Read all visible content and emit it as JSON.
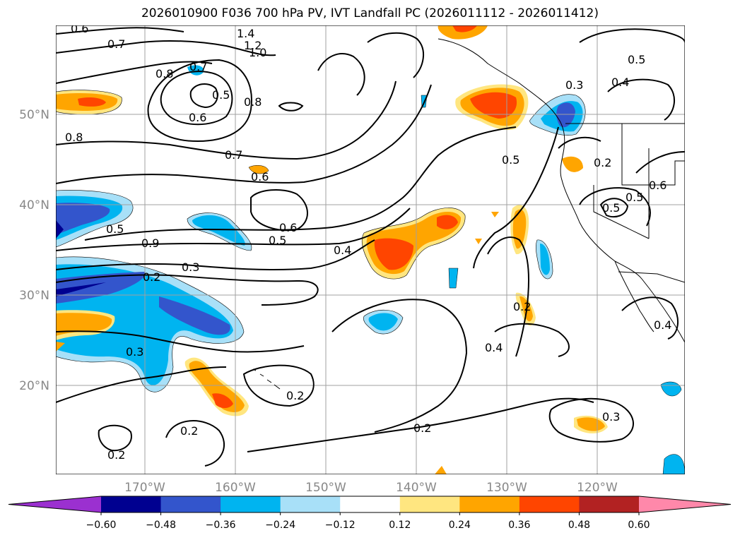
{
  "title": "2026010900 F036 700 hPa PV, IVT Landfall PC (2026011112 - 2026011412)",
  "lat_labels": [
    "50°N",
    "40°N",
    "30°N",
    "20°N"
  ],
  "lon_labels": [
    "170°W",
    "160°W",
    "150°W",
    "140°W",
    "130°W",
    "120°W"
  ],
  "contour_labels": [
    "0.6",
    "0.7",
    "1.4",
    "1.2",
    "1.0",
    "0.7",
    "0.8",
    "0.5",
    "0.6",
    "0.8",
    "0.8",
    "0.7",
    "0.6",
    "0.5",
    "0.6",
    "0.5",
    "0.4",
    "0.3",
    "0.2",
    "0.3",
    "0.2",
    "0.2",
    "0.2",
    "0.5",
    "0.4",
    "0.3",
    "0.5",
    "0.2",
    "0.5",
    "0.5",
    "0.6",
    "0.2",
    "0.4",
    "0.4",
    "0.3",
    "0.2",
    "0.9"
  ],
  "colorbar": {
    "ticks": [
      "−0.60",
      "−0.48",
      "−0.36",
      "−0.24",
      "−0.12",
      "0.12",
      "0.24",
      "0.36",
      "0.48",
      "0.60"
    ],
    "colors": [
      "#9b30d0",
      "#000090",
      "#3355cc",
      "#00b4f0",
      "#a8e0f8",
      "#ffffff",
      "#ffe680",
      "#ffa500",
      "#ff4500",
      "#b22222",
      "#ff88aa"
    ]
  }
}
